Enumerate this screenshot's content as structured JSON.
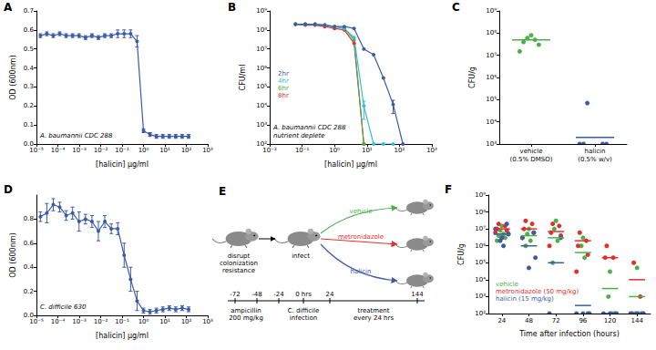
{
  "chart_data": [
    {
      "title": "A",
      "type": "line",
      "annotations": [
        "A. baumannii CDC 288"
      ],
      "xlabel": "[halicin] µg/ml",
      "ylabel": "OD (600nm)",
      "log": "x",
      "grid": false,
      "marker": "circle",
      "color": "#3b5ba9",
      "x": [
        1.53e-05,
        3.05e-05,
        6.1e-05,
        0.000122,
        0.000244,
        0.000488,
        0.000977,
        0.00195,
        0.00391,
        0.00781,
        0.0156,
        0.03125,
        0.0625,
        0.125,
        0.25,
        0.5,
        1,
        2,
        4,
        8,
        16,
        32,
        64,
        128
      ],
      "values": [
        0.57,
        0.58,
        0.57,
        0.58,
        0.57,
        0.57,
        0.57,
        0.56,
        0.57,
        0.56,
        0.57,
        0.57,
        0.58,
        0.58,
        0.58,
        0.54,
        0.07,
        0.05,
        0.04,
        0.04,
        0.04,
        0.04,
        0.04,
        0.04
      ],
      "errors": [
        0.01,
        0.01,
        0.01,
        0.01,
        0.01,
        0.01,
        0.01,
        0.01,
        0.01,
        0.01,
        0.01,
        0.01,
        0.02,
        0.02,
        0.02,
        0.03,
        0.01,
        0.01,
        0.01,
        0.01,
        0.01,
        0.01,
        0.01,
        0.01
      ],
      "xlim": [
        1e-05,
        1000
      ],
      "xticks": [
        {
          "value": 1e-05,
          "label": "10⁻⁵"
        },
        {
          "value": 0.0001,
          "label": "10⁻⁴"
        },
        {
          "value": 0.001,
          "label": "10⁻³"
        },
        {
          "value": 0.01,
          "label": "10⁻²"
        },
        {
          "value": 0.1,
          "label": "10⁻¹"
        },
        {
          "value": 1,
          "label": "10⁰"
        },
        {
          "value": 10,
          "label": "10¹"
        },
        {
          "value": 100,
          "label": "10²"
        },
        {
          "value": 1000,
          "label": "10³"
        }
      ],
      "ylim": [
        0,
        0.7
      ],
      "yticks": [
        {
          "value": 0,
          "label": "0.0"
        },
        0.1,
        0.2,
        0.3,
        0.4,
        0.5,
        0.6,
        0.7
      ]
    },
    {
      "title": "B",
      "type": "line",
      "annotations": [
        "A. baumannii CDC 288",
        "nutrient deplete"
      ],
      "xlabel": "[halicin] µg/ml",
      "ylabel": "CFU/ml",
      "log": true,
      "grid": false,
      "marker": "circle",
      "legend": "left",
      "x": [
        0.0625,
        0.125,
        0.25,
        0.5,
        1,
        2,
        4,
        8,
        16,
        32,
        64,
        128
      ],
      "series": [
        {
          "name": "2hr",
          "color": "#3b5ba9",
          "values": [
            200000000.0,
            200000000.0,
            200000000.0,
            180000000.0,
            150000000.0,
            150000000.0,
            120000000.0,
            10000000.0,
            5000000.0,
            300000.0,
            12000.0,
            100
          ],
          "errors": [
            null,
            null,
            null,
            null,
            null,
            null,
            null,
            null,
            null,
            null,
            8000,
            null
          ]
        },
        {
          "name": "4hr",
          "color": "#35c0d8",
          "values": [
            200000000.0,
            200000000.0,
            200000000.0,
            180000000.0,
            150000000.0,
            120000000.0,
            40000000.0,
            10000.0,
            100,
            100,
            100,
            null
          ],
          "errors": [
            null,
            null,
            null,
            null,
            null,
            null,
            null,
            8000,
            null,
            null,
            null,
            null
          ]
        },
        {
          "name": "6hr",
          "color": "#4daf4a",
          "values": [
            200000000.0,
            200000000.0,
            200000000.0,
            180000000.0,
            150000000.0,
            120000000.0,
            30000000.0,
            100,
            null,
            null,
            null,
            null
          ]
        },
        {
          "name": "8hr",
          "color": "#e0302b",
          "values": [
            200000000.0,
            180000000.0,
            180000000.0,
            150000000.0,
            120000000.0,
            100000000.0,
            20000000.0,
            100,
            null,
            null,
            null,
            null
          ]
        }
      ],
      "xlim": [
        0.01,
        1000
      ],
      "xticks": [
        {
          "value": 0.01,
          "label": "10⁻²"
        },
        {
          "value": 0.1,
          "label": "10⁻¹"
        },
        {
          "value": 1,
          "label": "10⁰"
        },
        {
          "value": 10,
          "label": "10¹"
        },
        {
          "value": 100,
          "label": "10²"
        },
        {
          "value": 1000,
          "label": "10³"
        }
      ],
      "ylim": [
        100,
        1000000000.0
      ],
      "yticks": [
        {
          "value": 100,
          "label": "10²"
        },
        {
          "value": 1000,
          "label": "10³"
        },
        {
          "value": 10000.0,
          "label": "10⁴"
        },
        {
          "value": 100000.0,
          "label": "10⁵"
        },
        {
          "value": 1000000.0,
          "label": "10⁶"
        },
        {
          "value": 10000000.0,
          "label": "10⁷"
        },
        {
          "value": 100000000.0,
          "label": "10⁸"
        },
        {
          "value": 1000000000.0,
          "label": "10⁹"
        }
      ]
    },
    {
      "title": "C",
      "type": "scatter",
      "ylabel": "CFU/g",
      "log": "y",
      "grid": false,
      "marker": "circle",
      "categories": [
        "vehicle\n(0.5% DMSO)",
        "halicin\n(0.5% w/v)"
      ],
      "values": [
        [
          80000000.0,
          60000000.0,
          50000000.0,
          40000000.0,
          30000000.0,
          15000000.0
        ],
        [
          70000.0,
          1000,
          1000,
          1000,
          1000
        ]
      ],
      "means": [
        50000000.0,
        2000
      ],
      "colors": [
        "#4daf4a",
        "#3b5ba9"
      ],
      "ylim": [
        1000,
        1000000000.0
      ],
      "yticks": [
        {
          "value": 1000,
          "label": "10³"
        },
        {
          "value": 10000.0,
          "label": "10⁴"
        },
        {
          "value": 100000.0,
          "label": "10⁵"
        },
        {
          "value": 1000000.0,
          "label": "10⁶"
        },
        {
          "value": 10000000.0,
          "label": "10⁷"
        },
        {
          "value": 100000000.0,
          "label": "10⁸"
        },
        {
          "value": 1000000000.0,
          "label": "10⁹"
        }
      ]
    },
    {
      "title": "D",
      "type": "line",
      "annotations": [
        "C. difficile 630"
      ],
      "xlabel": "[halicin] µg/ml",
      "ylabel": "OD (600nm)",
      "log": "x",
      "grid": false,
      "marker": "circle",
      "color": "#3b5ba9",
      "x": [
        1.53e-05,
        3.05e-05,
        6.1e-05,
        0.000122,
        0.000244,
        0.000488,
        0.000977,
        0.00195,
        0.00391,
        0.00781,
        0.0156,
        0.03125,
        0.0625,
        0.125,
        0.25,
        0.5,
        1,
        2,
        4,
        8,
        16,
        32,
        64,
        128
      ],
      "values": [
        0.82,
        0.85,
        0.92,
        0.9,
        0.83,
        0.85,
        0.78,
        0.8,
        0.78,
        0.7,
        0.78,
        0.72,
        0.72,
        0.5,
        0.3,
        0.12,
        0.04,
        0.03,
        0.04,
        0.05,
        0.06,
        0.05,
        0.06,
        0.05
      ],
      "errors": [
        0.04,
        0.08,
        0.05,
        0.04,
        0.04,
        0.05,
        0.08,
        0.04,
        0.05,
        0.08,
        0.05,
        0.04,
        0.05,
        0.1,
        0.1,
        0.08,
        0.02,
        0.02,
        0.02,
        0.02,
        0.02,
        0.02,
        0.02,
        0.02
      ],
      "xlim": [
        1e-05,
        1000
      ],
      "xticks": [
        {
          "value": 1e-05,
          "label": "10⁻⁵"
        },
        {
          "value": 0.0001,
          "label": "10⁻⁴"
        },
        {
          "value": 0.001,
          "label": "10⁻³"
        },
        {
          "value": 0.01,
          "label": "10⁻²"
        },
        {
          "value": 0.1,
          "label": "10⁻¹"
        },
        {
          "value": 1,
          "label": "10⁰"
        },
        {
          "value": 10,
          "label": "10¹"
        },
        {
          "value": 100,
          "label": "10²"
        },
        {
          "value": 1000,
          "label": "10³"
        }
      ],
      "ylim": [
        0,
        1
      ],
      "yticks": [
        {
          "value": 0,
          "label": "0.0"
        },
        0.2,
        0.4,
        0.6,
        0.8
      ]
    },
    {
      "title": "F",
      "type": "scatter",
      "xlabel": "Time after infection (hours)",
      "ylabel": "CFU/g",
      "log": "y",
      "grid": false,
      "marker": "circle",
      "legend": "lower left",
      "categories": [
        "24",
        "48",
        "72",
        "96",
        "120",
        "144"
      ],
      "series": [
        {
          "name": "vehicle",
          "color": "#4daf4a",
          "values": [
            [
              15000000.0,
              8000000.0,
              5000000.0,
              4000000.0,
              3000000.0,
              2000000.0
            ],
            [
              10000000.0,
              5000000.0,
              2000000.0,
              1000000.0
            ],
            [
              30000000.0,
              10000000.0,
              2000000.0,
              100000.0
            ],
            [
              3000000.0,
              1000000.0,
              200000.0
            ],
            [
              30000.0,
              1000,
              100
            ],
            [
              50000.0,
              100,
              100
            ]
          ],
          "means": [
            5000000.0,
            4000000.0,
            3000000.0,
            400000.0,
            3000,
            1000
          ]
        },
        {
          "name": "metronidazole (50 mg/kg)",
          "color": "#e0302b",
          "values": [
            [
              20000000.0,
              15000000.0,
              10000000.0,
              8000000.0,
              6000000.0,
              5000000.0,
              3000000.0
            ],
            [
              30000000.0,
              20000000.0,
              10000000.0,
              6000000.0,
              3000000.0
            ],
            [
              20000000.0,
              15000000.0,
              6000000.0,
              4000000.0,
              1000000.0
            ],
            [
              6000000.0,
              2000000.0,
              1000000.0,
              300000.0,
              30000.0
            ],
            [
              1000000.0,
              200000.0,
              200000.0
            ],
            [
              100000.0,
              1000,
              100
            ]
          ],
          "means": [
            10000000.0,
            10000000.0,
            7000000.0,
            2000000.0,
            200000.0,
            10000.0
          ]
        },
        {
          "name": "halicin (15 mg/kg)",
          "color": "#3b5ba9",
          "values": [
            [
              20000000.0,
              10000000.0,
              5000000.0,
              3000000.0,
              2000000.0,
              1000000.0
            ],
            [
              6000000.0,
              3000000.0,
              200000.0,
              50000.0
            ],
            [
              3000000.0,
              100
            ],
            [
              100,
              100,
              100,
              100
            ],
            [
              100,
              100,
              100,
              100
            ],
            [
              100,
              100,
              100,
              100
            ]
          ],
          "means": [
            5000000.0,
            1000000.0,
            100000.0,
            300,
            100,
            100
          ]
        }
      ],
      "ylim": [
        100,
        1000000000.0
      ],
      "yticks": [
        {
          "value": 100,
          "label": "10²"
        },
        {
          "value": 1000,
          "label": "10³"
        },
        {
          "value": 10000.0,
          "label": "10⁴"
        },
        {
          "value": 100000.0,
          "label": "10⁵"
        },
        {
          "value": 1000000.0,
          "label": "10⁶"
        },
        {
          "value": 10000000.0,
          "label": "10⁷"
        },
        {
          "value": 100000000.0,
          "label": "10⁸"
        },
        {
          "value": 1000000000.0,
          "label": "10⁹"
        }
      ]
    }
  ],
  "diagram": {
    "title": "E",
    "steps": [
      "disrupt\ncolonization\nresistance",
      "infect"
    ],
    "arms": [
      {
        "label": "vehicle",
        "color": "#4daf4a"
      },
      {
        "label": "metronidazole",
        "color": "#e0302b"
      },
      {
        "label": "halicin",
        "color": "#3b5ba9"
      }
    ],
    "timeline": {
      "ticks": [
        "-72",
        "-48",
        "-24",
        "0 hrs",
        "24",
        "144"
      ],
      "events": [
        "ampicillin\n200 mg/kg",
        "C. difficile\ninfection",
        "treatment\nevery 24 hrs"
      ]
    }
  }
}
